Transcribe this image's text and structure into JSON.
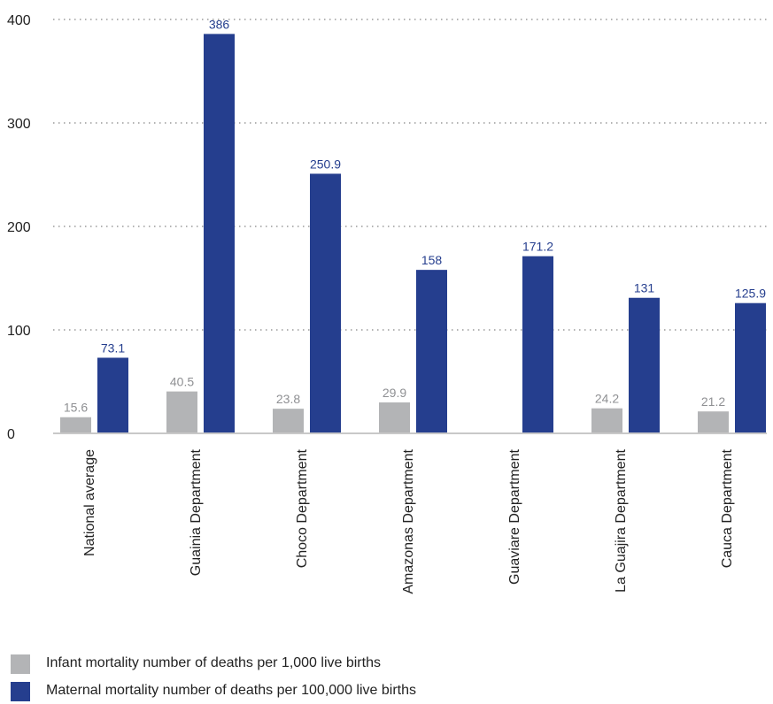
{
  "chart_data": {
    "type": "bar",
    "categories": [
      "National average",
      "Guainia Department",
      "Choco Department",
      "Amazonas Department",
      "Guaviare Department",
      "La Guajira Department",
      "Cauca Department"
    ],
    "series": [
      {
        "name": "Infant mortality number of deaths per 1,000 live births",
        "color": "#b3b4b6",
        "label_color": "#8f9093",
        "values": [
          15.6,
          40.5,
          23.8,
          29.9,
          null,
          24.2,
          21.2
        ],
        "labels": [
          "15.6",
          "40.5",
          "23.8",
          "29.9",
          "",
          "24.2",
          "21.2"
        ]
      },
      {
        "name": "Maternal mortality number of deaths per 100,000 live births",
        "color": "#253e8e",
        "label_color": "#253e8e",
        "values": [
          73.1,
          386,
          250.9,
          158,
          171.2,
          131,
          125.9
        ],
        "labels": [
          "73.1",
          "386",
          "250.9",
          "158",
          "171.2",
          "131",
          "125.9"
        ]
      }
    ],
    "yticks": [
      "0",
      "100",
      "200",
      "300",
      "400"
    ],
    "ylim": [
      0,
      400
    ],
    "grid": true,
    "legend_position": "bottom-left"
  }
}
